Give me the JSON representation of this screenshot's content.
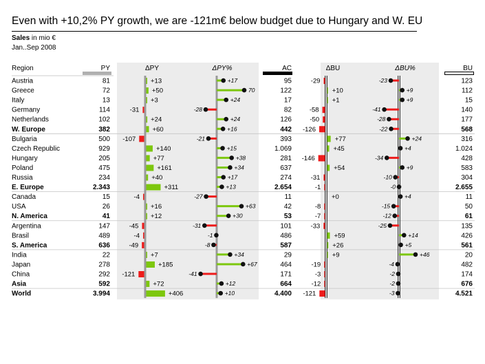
{
  "chart_data": {
    "type": "table",
    "title": "Even with +10,2% PY growth, we are -121m€ below budget due to Hungary and W. EU",
    "subtitle_measure": "Sales",
    "subtitle_unit": "in mio €",
    "period": "Jan..Sep 2008",
    "columns": {
      "region": "Region",
      "py": "PY",
      "dpy": "ΔPY",
      "dpypct": "ΔPY%",
      "ac": "AC",
      "dbu": "ΔBU",
      "dbupct": "ΔBU%",
      "bu": "BU"
    },
    "colors": {
      "positive": "#7dc70e",
      "negative": "#ee1b1b",
      "band": "#ececec",
      "axis": "#9a9a9a",
      "dot": "#111111"
    },
    "rows": [
      {
        "region": "Austria",
        "py": "81",
        "dpy": 13,
        "dpy_label": "+13",
        "dpypct": 17,
        "dpypct_label": "+17",
        "ac": "95",
        "dbu": -29,
        "dbu_label": "-29",
        "dbupct": -23,
        "dbupct_label": "-23",
        "bu": "123",
        "bold": false,
        "group_end": false
      },
      {
        "region": "Greece",
        "py": "72",
        "dpy": 50,
        "dpy_label": "+50",
        "dpypct": 70,
        "dpypct_label": "70",
        "ac": "122",
        "dbu": 10,
        "dbu_label": "+10",
        "dbupct": 9,
        "dbupct_label": "+9",
        "bu": "112",
        "bold": false,
        "group_end": false
      },
      {
        "region": "Italy",
        "py": "13",
        "dpy": 3,
        "dpy_label": "+3",
        "dpypct": 24,
        "dpypct_label": "+24",
        "ac": "17",
        "dbu": 1,
        "dbu_label": "+1",
        "dbupct": 9,
        "dbupct_label": "+9",
        "bu": "15",
        "bold": false,
        "group_end": false
      },
      {
        "region": "Germany",
        "py": "114",
        "dpy": -31,
        "dpy_label": "-31",
        "dpypct": -28,
        "dpypct_label": "-28",
        "ac": "82",
        "dbu": -58,
        "dbu_label": "-58",
        "dbupct": -41,
        "dbupct_label": "-41",
        "bu": "140",
        "bold": false,
        "group_end": false
      },
      {
        "region": "Netherlands",
        "py": "102",
        "dpy": 24,
        "dpy_label": "+24",
        "dpypct": 24,
        "dpypct_label": "+24",
        "ac": "126",
        "dbu": -50,
        "dbu_label": "-50",
        "dbupct": -28,
        "dbupct_label": "-28",
        "bu": "177",
        "bold": false,
        "group_end": false
      },
      {
        "region": "W. Europe",
        "py": "382",
        "dpy": 60,
        "dpy_label": "+60",
        "dpypct": 16,
        "dpypct_label": "+16",
        "ac": "442",
        "dbu": -126,
        "dbu_label": "-126",
        "dbupct": -22,
        "dbupct_label": "-22",
        "bu": "568",
        "bold": true,
        "group_end": true
      },
      {
        "region": "Bulgaria",
        "py": "500",
        "dpy": -107,
        "dpy_label": "-107",
        "dpypct": -21,
        "dpypct_label": "-21",
        "ac": "393",
        "dbu": 77,
        "dbu_label": "+77",
        "dbupct": 24,
        "dbupct_label": "+24",
        "bu": "316",
        "bold": false,
        "group_end": false
      },
      {
        "region": "Czech Republic",
        "py": "929",
        "dpy": 140,
        "dpy_label": "+140",
        "dpypct": 15,
        "dpypct_label": "+15",
        "ac": "1.069",
        "dbu": 45,
        "dbu_label": "+45",
        "dbupct": 4,
        "dbupct_label": "+4",
        "bu": "1.024",
        "bold": false,
        "group_end": false
      },
      {
        "region": "Hungary",
        "py": "205",
        "dpy": 77,
        "dpy_label": "+77",
        "dpypct": 38,
        "dpypct_label": "+38",
        "ac": "281",
        "dbu": -146,
        "dbu_label": "-146",
        "dbupct": -34,
        "dbupct_label": "-34",
        "bu": "428",
        "bold": false,
        "group_end": false
      },
      {
        "region": "Poland",
        "py": "475",
        "dpy": 161,
        "dpy_label": "+161",
        "dpypct": 34,
        "dpypct_label": "+34",
        "ac": "637",
        "dbu": 54,
        "dbu_label": "+54",
        "dbupct": 9,
        "dbupct_label": "+9",
        "bu": "583",
        "bold": false,
        "group_end": false
      },
      {
        "region": "Russia",
        "py": "234",
        "dpy": 40,
        "dpy_label": "+40",
        "dpypct": 17,
        "dpypct_label": "+17",
        "ac": "274",
        "dbu": -31,
        "dbu_label": "-31",
        "dbupct": -10,
        "dbupct_label": "-10",
        "bu": "304",
        "bold": false,
        "group_end": false
      },
      {
        "region": "E. Europe",
        "py": "2.343",
        "dpy": 311,
        "dpy_label": "+311",
        "dpypct": 13,
        "dpypct_label": "+13",
        "ac": "2.654",
        "dbu": -1,
        "dbu_label": "-1",
        "dbupct": 0,
        "dbupct_label": "-0",
        "bu": "2.655",
        "bold": true,
        "group_end": true
      },
      {
        "region": "Canada",
        "py": "15",
        "dpy": -4,
        "dpy_label": "-4",
        "dpypct": -27,
        "dpypct_label": "-27",
        "ac": "11",
        "dbu": 0,
        "dbu_label": "+0",
        "dbupct": 4,
        "dbupct_label": "+4",
        "bu": "11",
        "bold": false,
        "group_end": false
      },
      {
        "region": "USA",
        "py": "26",
        "dpy": 16,
        "dpy_label": "+16",
        "dpypct": 63,
        "dpypct_label": "+63",
        "ac": "42",
        "dbu": -8,
        "dbu_label": "-8",
        "dbupct": -15,
        "dbupct_label": "-15",
        "bu": "50",
        "bold": false,
        "group_end": false
      },
      {
        "region": "N. America",
        "py": "41",
        "dpy": 12,
        "dpy_label": "+12",
        "dpypct": 30,
        "dpypct_label": "+30",
        "ac": "53",
        "dbu": -7,
        "dbu_label": "-7",
        "dbupct": -12,
        "dbupct_label": "-12",
        "bu": "61",
        "bold": true,
        "group_end": true
      },
      {
        "region": "Argentina",
        "py": "147",
        "dpy": -45,
        "dpy_label": "-45",
        "dpypct": -31,
        "dpypct_label": "-31",
        "ac": "101",
        "dbu": -33,
        "dbu_label": "-33",
        "dbupct": -25,
        "dbupct_label": "-25",
        "bu": "135",
        "bold": false,
        "group_end": false
      },
      {
        "region": "Brasil",
        "py": "489",
        "dpy": -4,
        "dpy_label": "-4",
        "dpypct": -1,
        "dpypct_label": "-1",
        "ac": "486",
        "dbu": 59,
        "dbu_label": "+59",
        "dbupct": 14,
        "dbupct_label": "+14",
        "bu": "426",
        "bold": false,
        "group_end": false
      },
      {
        "region": "S. America",
        "py": "636",
        "dpy": -49,
        "dpy_label": "-49",
        "dpypct": -8,
        "dpypct_label": "-8",
        "ac": "587",
        "dbu": 26,
        "dbu_label": "+26",
        "dbupct": 5,
        "dbupct_label": "+5",
        "bu": "561",
        "bold": true,
        "group_end": true
      },
      {
        "region": "India",
        "py": "22",
        "dpy": 7,
        "dpy_label": "+7",
        "dpypct": 34,
        "dpypct_label": "+34",
        "ac": "29",
        "dbu": 9,
        "dbu_label": "+9",
        "dbupct": 46,
        "dbupct_label": "+46",
        "bu": "20",
        "bold": false,
        "group_end": false
      },
      {
        "region": "Japan",
        "py": "278",
        "dpy": 185,
        "dpy_label": "+185",
        "dpypct": 67,
        "dpypct_label": "+67",
        "ac": "464",
        "dbu": -19,
        "dbu_label": "-19",
        "dbupct": -4,
        "dbupct_label": "-4",
        "bu": "482",
        "bold": false,
        "group_end": false
      },
      {
        "region": "China",
        "py": "292",
        "dpy": -121,
        "dpy_label": "-121",
        "dpypct": -41,
        "dpypct_label": "-41",
        "ac": "171",
        "dbu": -3,
        "dbu_label": "-3",
        "dbupct": -2,
        "dbupct_label": "-2",
        "bu": "174",
        "bold": false,
        "group_end": false
      },
      {
        "region": "Asia",
        "py": "592",
        "dpy": 72,
        "dpy_label": "+72",
        "dpypct": 12,
        "dpypct_label": "+12",
        "ac": "664",
        "dbu": -12,
        "dbu_label": "-12",
        "dbupct": -2,
        "dbupct_label": "-2",
        "bu": "676",
        "bold": true,
        "group_end": true
      },
      {
        "region": "World",
        "py": "3.994",
        "dpy": 406,
        "dpy_label": "+406",
        "dpypct": 10,
        "dpypct_label": "+10",
        "ac": "4.400",
        "dbu": -121,
        "dbu_label": "-121",
        "dbupct": -3,
        "dbupct_label": "-3",
        "bu": "4.521",
        "bold": true,
        "group_end": false
      }
    ]
  }
}
